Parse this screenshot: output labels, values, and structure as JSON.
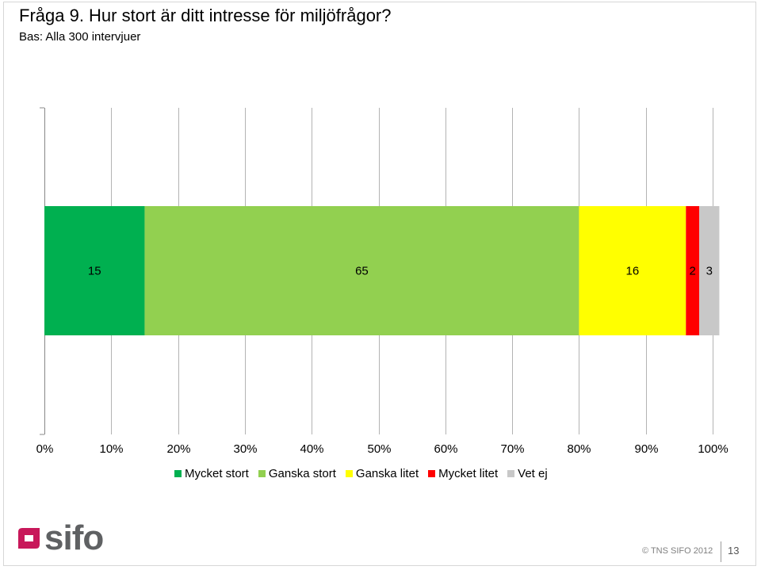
{
  "title": "Fråga 9. Hur stort är ditt intresse för miljöfrågor?",
  "subtitle": "Bas: Alla 300 intervjuer",
  "chart_data": {
    "type": "bar",
    "orientation": "horizontal",
    "stacked": true,
    "categories": [
      ""
    ],
    "series": [
      {
        "name": "Mycket stort",
        "values": [
          15
        ],
        "color": "#00b050",
        "label": "15"
      },
      {
        "name": "Ganska stort",
        "values": [
          65
        ],
        "color": "#92d050",
        "label": "65"
      },
      {
        "name": "Ganska litet",
        "values": [
          16
        ],
        "color": "#ffff00",
        "label": "16"
      },
      {
        "name": "Mycket litet",
        "values": [
          2
        ],
        "color": "#ff0000",
        "label": "2"
      },
      {
        "name": "Vet ej",
        "values": [
          3
        ],
        "color": "#c8c8c8",
        "label": "3"
      }
    ],
    "xlim": [
      0,
      100
    ],
    "xticks": [
      "0%",
      "10%",
      "20%",
      "30%",
      "40%",
      "50%",
      "60%",
      "70%",
      "80%",
      "90%",
      "100%"
    ],
    "grid": true,
    "legend_position": "bottom",
    "xlabel": "",
    "ylabel": ""
  },
  "footer": {
    "logo_text": "sifo",
    "copyright": "© TNS SIFO 2012",
    "page_number": "13"
  },
  "colors": {
    "logo_accent": "#c8185a",
    "logo_text": "#5f6163",
    "gridline": "#b3b3b3"
  }
}
